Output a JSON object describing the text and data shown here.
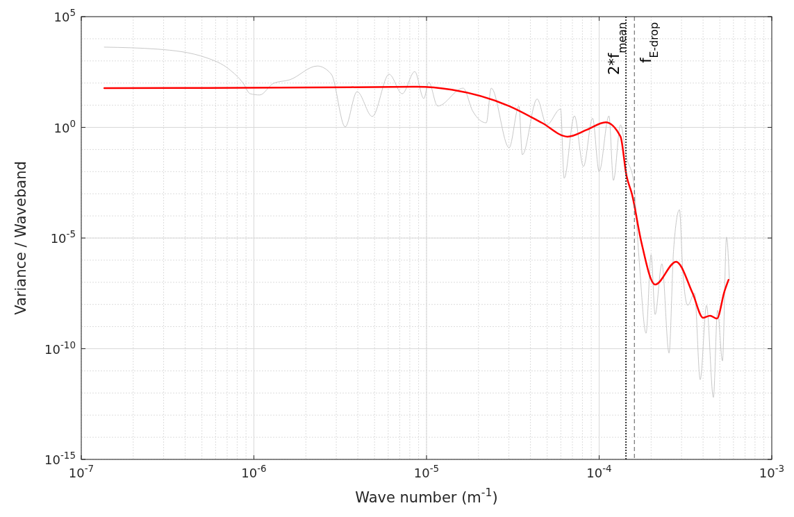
{
  "chart_data": {
    "type": "line",
    "xlabel": "Wave number (m$^{-1}$)",
    "ylabel": "Variance / Waveband",
    "log": "xy",
    "grid": true,
    "xlim": [
      1e-07,
      0.001
    ],
    "xticks": [
      {
        "value": 1e-07,
        "label": "10$^{-7}$"
      },
      {
        "value": 1e-06,
        "label": "10$^{-6}$"
      },
      {
        "value": 1e-05,
        "label": "10$^{-5}$"
      },
      {
        "value": 0.0001,
        "label": "10$^{-4}$"
      },
      {
        "value": 0.001,
        "label": "10$^{-3}$"
      }
    ],
    "ylim": [
      1e-15,
      100000.0
    ],
    "yticks": [
      {
        "value": 1e-15,
        "label": "10$^{-15}$"
      },
      {
        "value": 1e-10,
        "label": "10$^{-10}$"
      },
      {
        "value": 1e-05,
        "label": "10$^{-5}$"
      },
      {
        "value": 1,
        "label": "10$^{0}$"
      },
      {
        "value": 100000.0,
        "label": "10$^{5}$"
      }
    ],
    "series": [
      {
        "color": "#c8c8c8",
        "x": [
          1.36e-07,
          2.77e-07,
          5.3e-07,
          7.19e-07,
          8.67e-07,
          9.51e-07,
          1.08e-06,
          1.3e-06,
          1.61e-06,
          2.33e-06,
          2.81e-06,
          3.38e-06,
          3.96e-06,
          4.85e-06,
          6.07e-06,
          7.23e-06,
          8.55e-06,
          9.64e-06,
          1.03e-05,
          1.16e-05,
          1.63e-05,
          1.85e-05,
          2.22e-05,
          2.37e-05,
          3.01e-05,
          3.43e-05,
          3.59e-05,
          4.37e-05,
          4.97e-05,
          5.98e-05,
          6.27e-05,
          7.19e-05,
          8.11e-05,
          9.16e-05,
          0.0001,
          0.000114,
          0.000121,
          0.000133,
          0.000144,
          0.000158,
          0.00017,
          0.000187,
          0.0002,
          0.000211,
          0.000231,
          0.000254,
          0.00027,
          0.000292,
          0.000305,
          0.000326,
          0.000357,
          0.000385,
          0.000419,
          0.000459,
          0.000485,
          0.000518,
          0.000547,
          0.000568
        ],
        "values": [
          4200,
          3400,
          1400,
          420,
          98,
          33,
          29,
          98,
          140,
          590,
          250,
          1.05,
          41,
          3.1,
          250,
          33,
          330,
          20,
          110,
          9.1,
          59,
          5.5,
          1.6,
          59,
          0.12,
          9.1,
          0.058,
          19,
          1.3,
          6.8,
          0.005,
          3.3,
          0.017,
          2.6,
          0.01,
          3.3,
          0.004,
          1.3,
          0.044,
          0.004,
          1.4e-06,
          5e-10,
          1.8e-06,
          3.5e-09,
          6.9e-07,
          6.3e-11,
          3e-06,
          0.00019,
          3.4e-07,
          9.1e-09,
          3.2e-08,
          4e-12,
          9.1e-09,
          6.3e-13,
          5.5e-09,
          2.8e-11,
          1.1e-05,
          1.3e-07
        ]
      },
      {
        "color": "#ff0000",
        "x": [
          1.36e-07,
          5.44e-07,
          2.19e-06,
          8.8e-06,
          1.4e-05,
          3.01e-05,
          4.66e-05,
          6.56e-05,
          8.5e-05,
          0.000109,
          0.000133,
          0.000144,
          0.000155,
          0.000175,
          0.000211,
          0.000279,
          0.000348,
          0.0004,
          0.000439,
          0.000481,
          0.000532,
          0.000562
        ],
        "values": [
          59,
          60,
          63,
          68,
          50,
          9.1,
          1.6,
          0.38,
          0.78,
          1.7,
          0.38,
          0.0066,
          0.00095,
          7.4e-06,
          7.9e-08,
          8.5e-07,
          3.2e-08,
          2.5e-09,
          3.1e-09,
          2.3e-09,
          3.9e-08,
          1.3e-07
        ]
      }
    ],
    "ref_lines": [
      {
        "axis": "x",
        "value": 0.000143,
        "label": "2*f$_{mean}$",
        "color": "#333333",
        "line_style": "dotted"
      },
      {
        "axis": "x",
        "value": 0.00016,
        "label": "f$_{E-drop}$",
        "color": "#555555",
        "line_style": "dashed"
      }
    ]
  }
}
